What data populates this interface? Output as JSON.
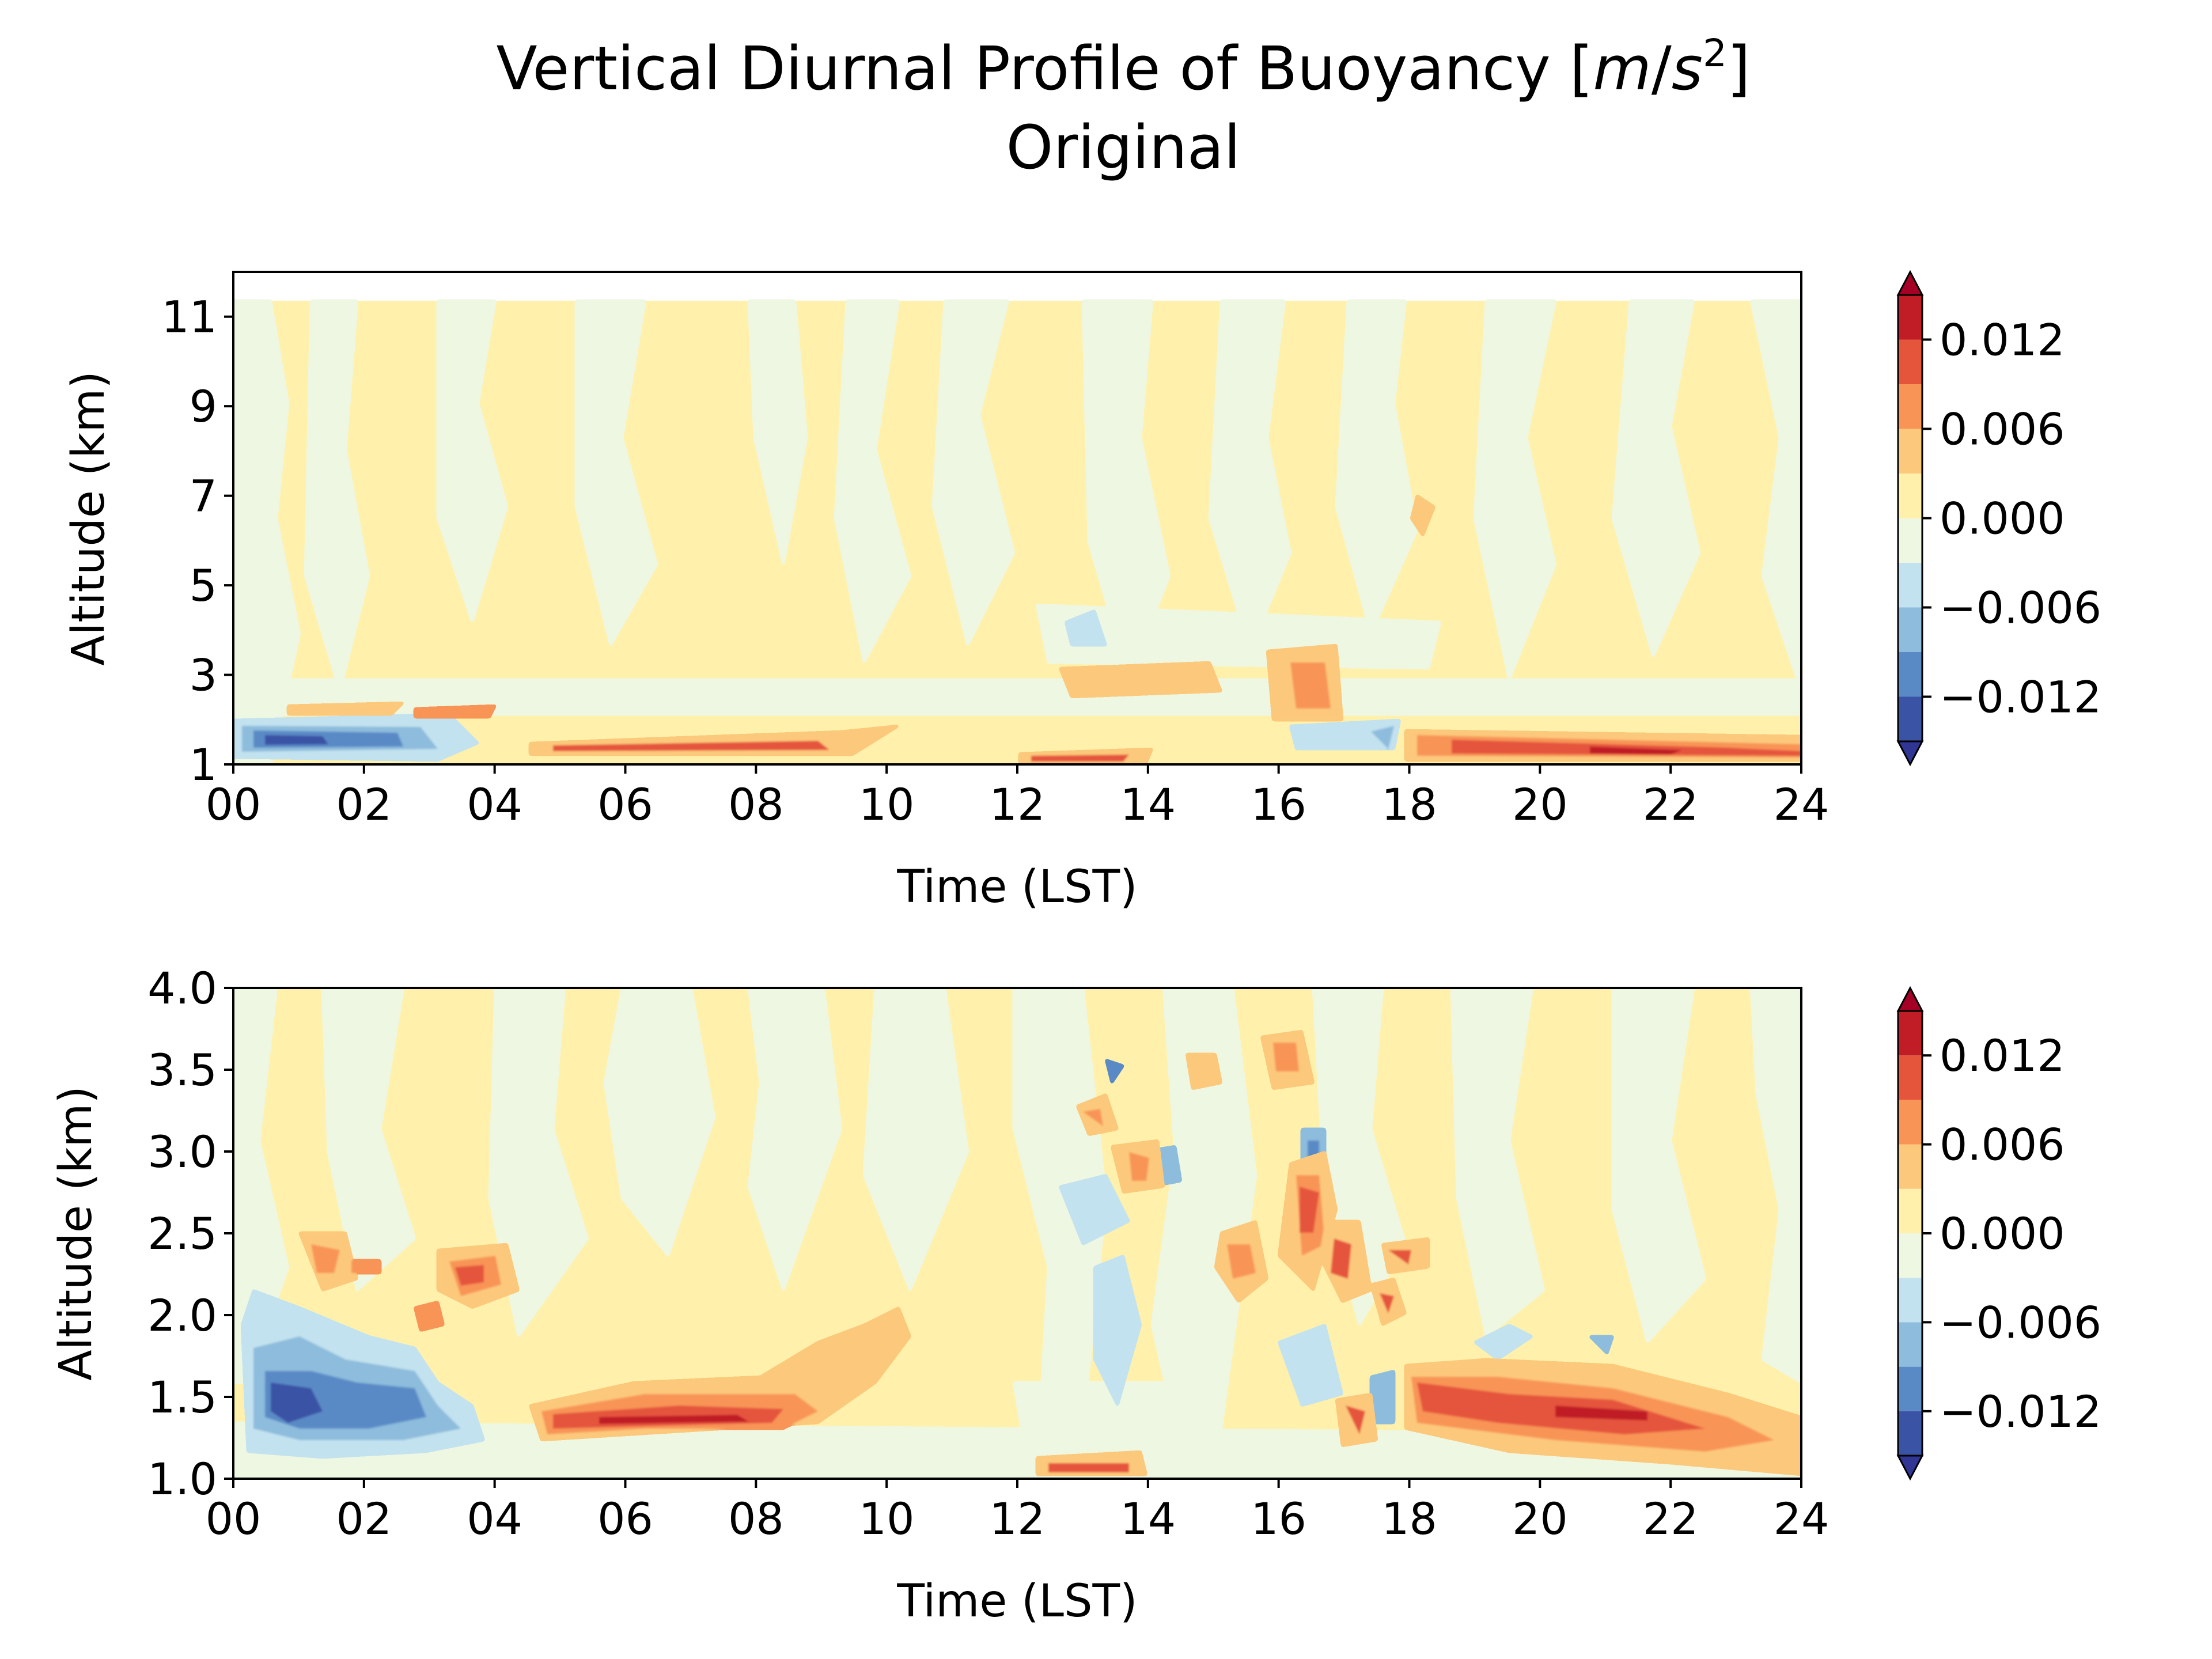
{
  "figure": {
    "title_main": "Vertical Diurnal Profile of Buoyancy [",
    "title_unit_m": "m",
    "title_unit_slash": "/",
    "title_unit_s": "s",
    "title_unit_exp": "2",
    "title_close": "]",
    "subtitle": "Original"
  },
  "chart_data": [
    {
      "type": "heatmap",
      "panel": "top",
      "xlabel": "Time (LST)",
      "ylabel": "Altitude (km)",
      "xlim": [
        0,
        24
      ],
      "ylim": [
        1,
        12
      ],
      "data_top_km": 11.35,
      "xticks": [
        "00",
        "02",
        "04",
        "06",
        "08",
        "10",
        "12",
        "14",
        "16",
        "18",
        "20",
        "22",
        "24"
      ],
      "yticks": [
        "1",
        "3",
        "5",
        "7",
        "9",
        "11"
      ],
      "ytick_values": [
        1,
        3,
        5,
        7,
        9,
        11
      ],
      "colorbar": {
        "levels": [
          -0.015,
          -0.012,
          -0.009,
          -0.006,
          -0.003,
          0.0,
          0.003,
          0.006,
          0.009,
          0.012,
          0.015
        ],
        "ticks": [
          "0.012",
          "0.006",
          "0.000",
          "−0.006",
          "−0.012"
        ],
        "tick_values": [
          0.012,
          0.006,
          0.0,
          -0.006,
          -0.012
        ],
        "extend": "both",
        "colors": [
          "#313695",
          "#4575b4",
          "#74add1",
          "#abd9e9",
          "#e0f3f8",
          "#ffffbf",
          "#fee090",
          "#fdae61",
          "#f46d43",
          "#d73027",
          "#a50026"
        ],
        "panel_colors": [
          "#3b53a4",
          "#5a8ac6",
          "#8dbcdc",
          "#c3e2ef",
          "#eef7e2",
          "#fff1ac",
          "#fcc97c",
          "#f89456",
          "#e5553c",
          "#c01d27"
        ]
      },
      "features": [
        {
          "name": "early-morning negative layer",
          "x": [
            0.2,
            3.0
          ],
          "z_km": [
            1.15,
            1.8
          ],
          "value": -0.011
        },
        {
          "name": "morning positive layer",
          "x": [
            4.8,
            9.0
          ],
          "z_km": [
            1.2,
            1.5
          ],
          "value": 0.01
        },
        {
          "name": "evening positive layer",
          "x": [
            18.0,
            24.0
          ],
          "z_km": [
            1.1,
            1.6
          ],
          "value": 0.011
        },
        {
          "name": "afternoon convective cells",
          "x": [
            12.0,
            18.0
          ],
          "z_km": [
            1.5,
            3.6
          ],
          "value": 0.006
        }
      ]
    },
    {
      "type": "heatmap",
      "panel": "bottom",
      "xlabel": "Time (LST)",
      "ylabel": "Altitude (km)",
      "xlim": [
        0,
        24
      ],
      "ylim": [
        1.0,
        4.0
      ],
      "xticks": [
        "00",
        "02",
        "04",
        "06",
        "08",
        "10",
        "12",
        "14",
        "16",
        "18",
        "20",
        "22",
        "24"
      ],
      "yticks": [
        "1.0",
        "1.5",
        "2.0",
        "2.5",
        "3.0",
        "3.5",
        "4.0"
      ],
      "ytick_values": [
        1.0,
        1.5,
        2.0,
        2.5,
        3.0,
        3.5,
        4.0
      ],
      "colorbar": {
        "levels": [
          -0.015,
          -0.012,
          -0.009,
          -0.006,
          -0.003,
          0.0,
          0.003,
          0.006,
          0.009,
          0.012,
          0.015
        ],
        "ticks": [
          "0.012",
          "0.006",
          "0.000",
          "−0.006",
          "−0.012"
        ],
        "tick_values": [
          0.012,
          0.006,
          0.0,
          -0.006,
          -0.012
        ],
        "extend": "both"
      },
      "features": [
        {
          "name": "early-morning negative core",
          "x": [
            0.5,
            1.3
          ],
          "z_km": [
            1.3,
            1.5
          ],
          "value": -0.0135
        },
        {
          "name": "morning positive layer",
          "x": [
            5.0,
            9.0
          ],
          "z_km": [
            1.25,
            1.45
          ],
          "value": 0.0135
        },
        {
          "name": "evening positive layer",
          "x": [
            18.5,
            23.0
          ],
          "z_km": [
            1.2,
            1.5
          ],
          "value": 0.0135
        },
        {
          "name": "late-afternoon positive plume",
          "x": [
            16.0,
            17.2
          ],
          "z_km": [
            1.9,
            2.8
          ],
          "value": 0.012
        }
      ]
    }
  ]
}
